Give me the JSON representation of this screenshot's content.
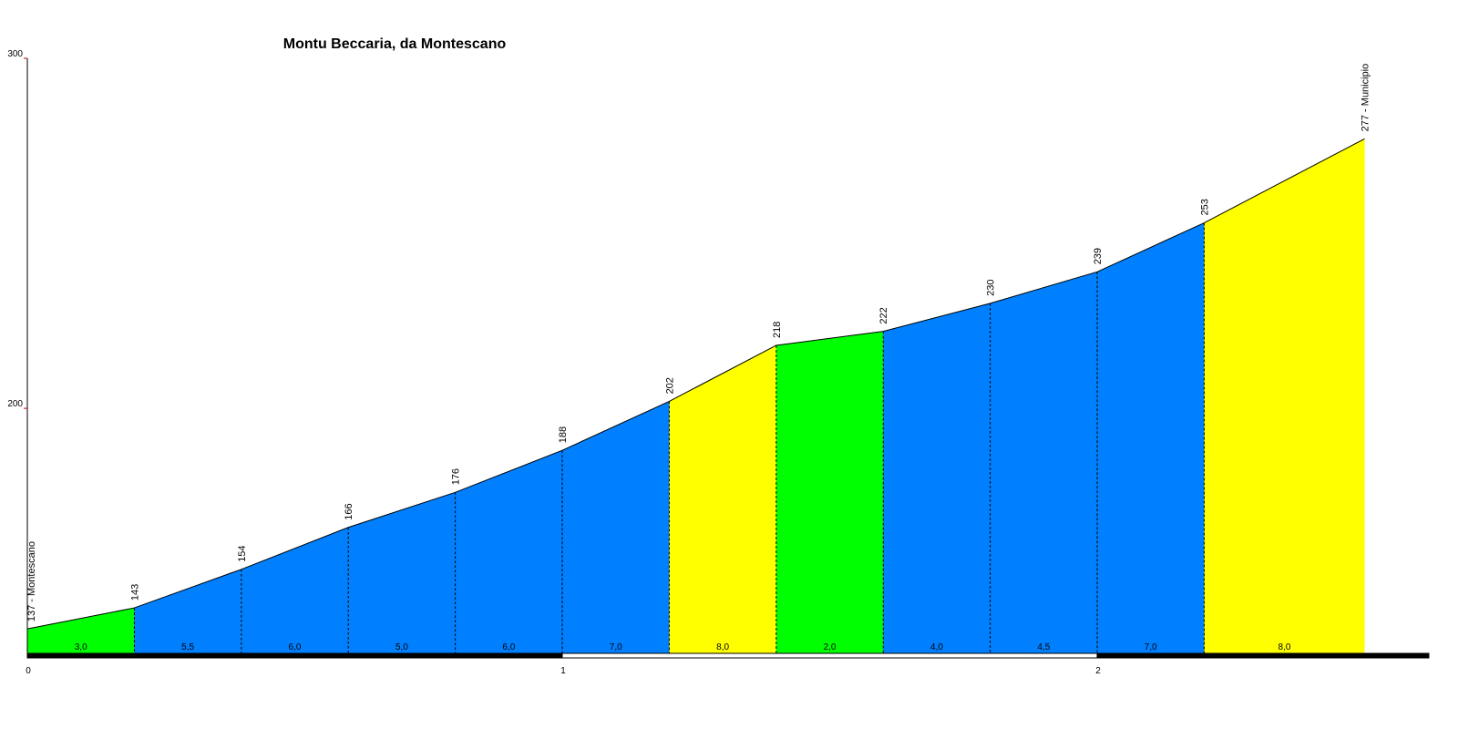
{
  "chart_data": {
    "type": "profile",
    "title": "Montu Beccaria, da Montescano",
    "x": [
      0,
      0.2,
      0.4,
      0.6,
      0.8,
      1.0,
      1.2,
      1.4,
      1.6,
      1.8,
      2.0,
      2.2,
      2.5
    ],
    "values": [
      137,
      143,
      154,
      166,
      176,
      188,
      202,
      218,
      222,
      230,
      239,
      253,
      277
    ],
    "value_labels": [
      "137 - Montescano",
      "143",
      "154",
      "166",
      "176",
      "188",
      "202",
      "218",
      "222",
      "230",
      "239",
      "253",
      "277 - Municipio"
    ],
    "gradients": [
      3.0,
      5.5,
      6.0,
      5.0,
      6.0,
      7.0,
      8.0,
      2.0,
      4.0,
      4.5,
      7.0,
      8.0
    ],
    "gradient_labels": [
      "3,0",
      "5,5",
      "6,0",
      "5,0",
      "6,0",
      "7,0",
      "8,0",
      "2,0",
      "4,0",
      "4,5",
      "7,0",
      "8,0"
    ],
    "segment_colors": [
      "#00ff00",
      "#0080ff",
      "#0080ff",
      "#0080ff",
      "#0080ff",
      "#0080ff",
      "#ffff00",
      "#00ff00",
      "#0080ff",
      "#0080ff",
      "#0080ff",
      "#ffff00"
    ],
    "xlim": [
      0,
      2.62
    ],
    "xticks": [
      0,
      1,
      2
    ],
    "ylim": [
      130,
      300
    ],
    "yticks": [
      200,
      300
    ]
  }
}
